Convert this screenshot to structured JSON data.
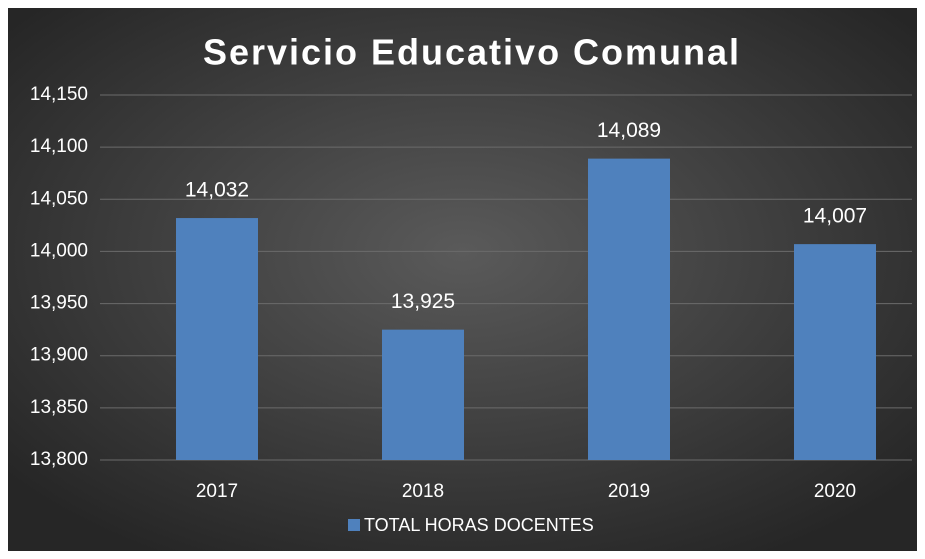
{
  "chart_data": {
    "type": "bar",
    "title": "Servicio Educativo Comunal",
    "categories": [
      "2017",
      "2018",
      "2019",
      "2020"
    ],
    "series": [
      {
        "name": "TOTAL HORAS DOCENTES",
        "color": "#4f81bd",
        "values": [
          14032,
          13925,
          14089,
          14007
        ],
        "value_labels": [
          "14,032",
          "13,925",
          "14,089",
          "14,007"
        ]
      }
    ],
    "ylim": [
      13800,
      14150
    ],
    "yticks": [
      {
        "value": 13800,
        "label": "13,800"
      },
      {
        "value": 13850,
        "label": "13,850"
      },
      {
        "value": 13900,
        "label": "13,900"
      },
      {
        "value": 13950,
        "label": "13,950"
      },
      {
        "value": 14000,
        "label": "14,000"
      },
      {
        "value": 14050,
        "label": "14,050"
      },
      {
        "value": 14100,
        "label": "14,100"
      },
      {
        "value": 14150,
        "label": "14,150"
      }
    ],
    "grid": true,
    "legend": "bottom"
  }
}
